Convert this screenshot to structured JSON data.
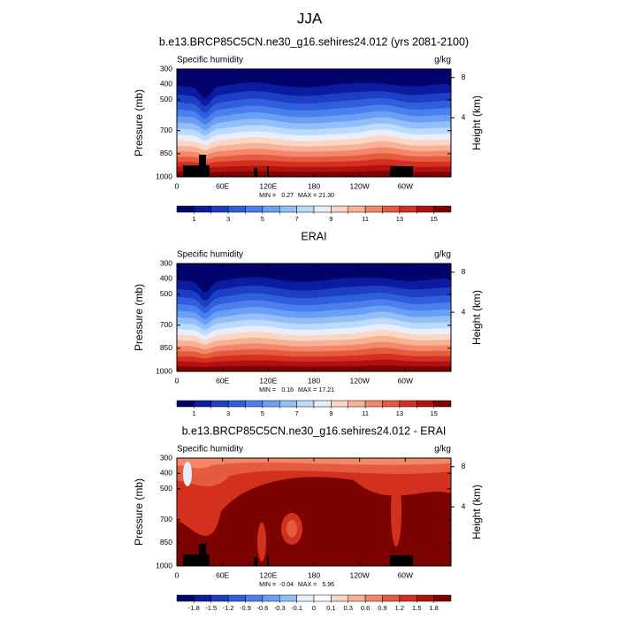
{
  "title": "JJA",
  "chart_data": [
    {
      "type": "contour",
      "title": "b.e13.BRCP85C5CN.ne30_g16.sehires24.012 (yrs 2081-2100)",
      "left_label": "Specific humidity",
      "right_label": "g/kg",
      "ylabel": "Pressure (mb)",
      "y2label": "Height (km)",
      "xlim": [
        0,
        360
      ],
      "xticks": [
        0,
        {
          "value": 60,
          "label": "60E"
        },
        {
          "value": 120,
          "label": "120E"
        },
        180,
        {
          "value": 240,
          "label": "120W"
        },
        {
          "value": 300,
          "label": "60W"
        }
      ],
      "ylim": [
        1000,
        300
      ],
      "yticks": [
        300,
        400,
        500,
        700,
        850,
        1000
      ],
      "y2ticks": [
        8,
        4
      ],
      "min_label": "MIN =",
      "min": 0.27,
      "max_label": "MAX =",
      "max": {
        "value": 21.3,
        "label": "21.30"
      },
      "cbar_levels": [
        1,
        2,
        3,
        4,
        5,
        6,
        7,
        8,
        9,
        10,
        11,
        12,
        13,
        14,
        15
      ],
      "cbar_ticks": [
        1,
        3,
        5,
        7,
        9,
        11,
        13,
        15
      ],
      "colors": [
        "#03046b",
        "#0c1ca0",
        "#1c3fc4",
        "#2f5fdf",
        "#4a80ee",
        "#6b9ff5",
        "#93bff9",
        "#bcdafc",
        "#e8eefb",
        "#fbd6c4",
        "#f9b196",
        "#f3876a",
        "#e65a40",
        "#d3301f",
        "#b31010",
        "#7d0202"
      ]
    },
    {
      "type": "contour",
      "title": "ERAI",
      "left_label": "Specific humidity",
      "right_label": "g/kg",
      "ylabel": "Pressure (mb)",
      "y2label": "Height (km)",
      "xlim": [
        0,
        360
      ],
      "xticks": [
        0,
        {
          "value": 60,
          "label": "60E"
        },
        {
          "value": 120,
          "label": "120E"
        },
        180,
        {
          "value": 240,
          "label": "120W"
        },
        {
          "value": 300,
          "label": "60W"
        }
      ],
      "ylim": [
        1000,
        300
      ],
      "yticks": [
        300,
        400,
        500,
        700,
        850,
        1000
      ],
      "y2ticks": [
        8,
        4
      ],
      "min_label": "MIN =",
      "min": 0.16,
      "max_label": "MAX =",
      "max": 17.21,
      "cbar_levels": [
        1,
        2,
        3,
        4,
        5,
        6,
        7,
        8,
        9,
        10,
        11,
        12,
        13,
        14,
        15
      ],
      "cbar_ticks": [
        1,
        3,
        5,
        7,
        9,
        11,
        13,
        15
      ],
      "colors": [
        "#03046b",
        "#0c1ca0",
        "#1c3fc4",
        "#2f5fdf",
        "#4a80ee",
        "#6b9ff5",
        "#93bff9",
        "#bcdafc",
        "#e8eefb",
        "#fbd6c4",
        "#f9b196",
        "#f3876a",
        "#e65a40",
        "#d3301f",
        "#b31010",
        "#7d0202"
      ]
    },
    {
      "type": "contour",
      "title": "b.e13.BRCP85C5CN.ne30_g16.sehires24.012 - ERAI",
      "left_label": "Specific humidity",
      "right_label": "g/kg",
      "ylabel": "Pressure (mb)",
      "y2label": "Height (km)",
      "xlim": [
        0,
        360
      ],
      "xticks": [
        0,
        {
          "value": 60,
          "label": "60E"
        },
        {
          "value": 120,
          "label": "120E"
        },
        180,
        {
          "value": 240,
          "label": "120W"
        },
        {
          "value": 300,
          "label": "60W"
        }
      ],
      "ylim": [
        1000,
        300
      ],
      "yticks": [
        300,
        400,
        500,
        700,
        850,
        1000
      ],
      "y2ticks": [
        8,
        4
      ],
      "min_label": "MIN =",
      "min": -0.04,
      "max_label": "MAX =",
      "max": 5.96,
      "cbar_levels": [
        -1.8,
        -1.5,
        -1.2,
        -0.9,
        -0.6,
        -0.3,
        -0.1,
        0,
        0.1,
        0.3,
        0.6,
        0.9,
        1.2,
        1.5,
        1.8
      ],
      "cbar_ticks": [
        -1.8,
        -1.5,
        -1.2,
        -0.9,
        -0.6,
        -0.3,
        -0.1,
        0,
        0.1,
        0.3,
        0.6,
        0.9,
        1.2,
        1.5,
        1.8
      ],
      "colors": [
        "#03046b",
        "#0c1ca0",
        "#1c3fc4",
        "#2f5fdf",
        "#4a80ee",
        "#6b9ff5",
        "#93bff9",
        "#e8eefb",
        "#ffffff",
        "#fbd6c4",
        "#f9b196",
        "#f3876a",
        "#e65a40",
        "#d3301f",
        "#b31010",
        "#7d0202"
      ]
    }
  ]
}
